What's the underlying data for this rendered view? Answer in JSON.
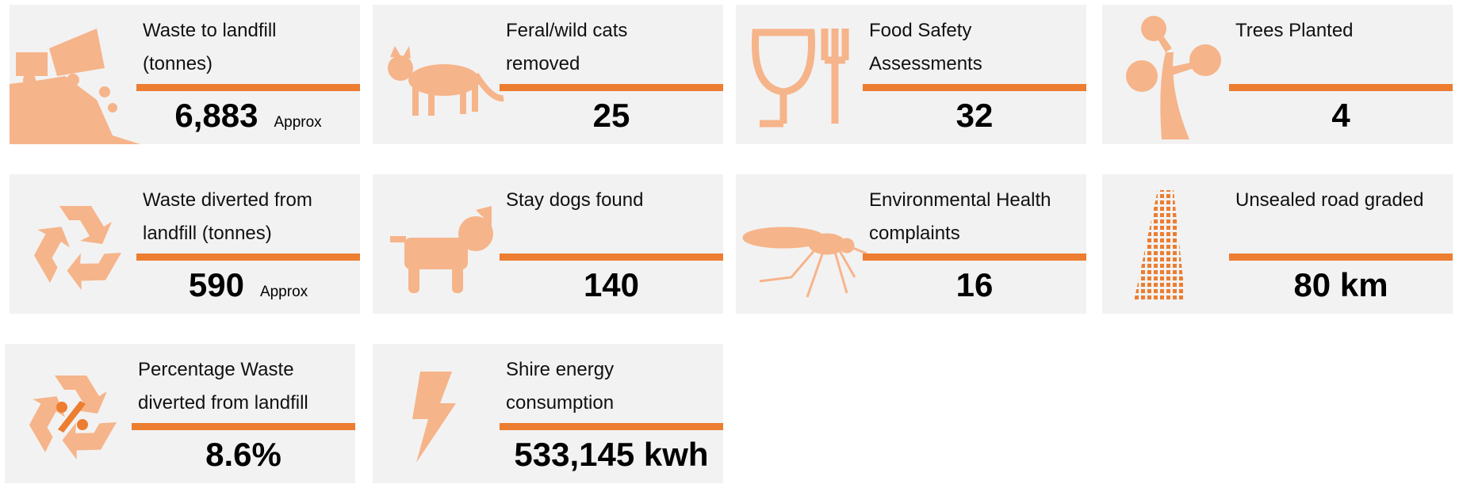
{
  "cards": [
    {
      "title": [
        "Waste to landfill",
        "(tonnes)"
      ],
      "value": "6,883",
      "note": "Approx"
    },
    {
      "title": [
        "Feral/wild cats",
        "removed"
      ],
      "value": "25"
    },
    {
      "title": [
        "Food Safety",
        "Assessments"
      ],
      "value": "32"
    },
    {
      "title": [
        "Trees Planted"
      ],
      "value": "4"
    },
    {
      "title": [
        "Waste diverted from",
        "landfill (tonnes)"
      ],
      "value": "590",
      "note": "Approx"
    },
    {
      "title": [
        "Stay dogs found"
      ],
      "value": "140"
    },
    {
      "title": [
        "Environmental Health",
        "complaints"
      ],
      "value": "16"
    },
    {
      "title": [
        "Unsealed road graded"
      ],
      "value": "80 km"
    },
    {
      "title": [
        "Percentage Waste",
        "diverted from landfill"
      ],
      "value": "8.6%"
    },
    {
      "title": [
        "Shire energy",
        "consumption"
      ],
      "value": "533,145 kwh"
    }
  ]
}
